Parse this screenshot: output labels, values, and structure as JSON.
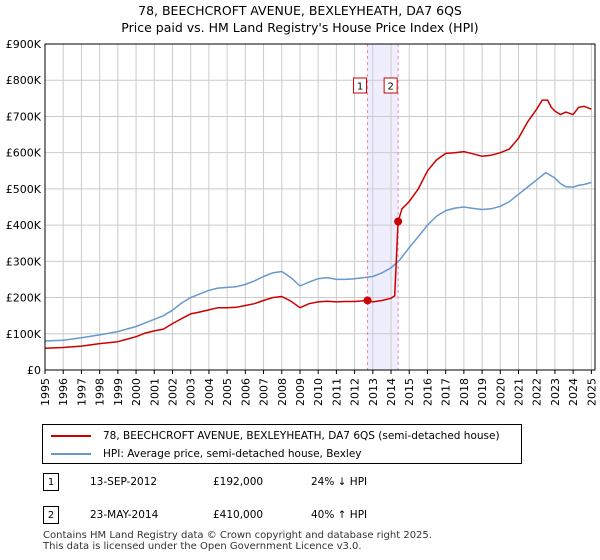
{
  "title_line1": "78, BEECHCROFT AVENUE, BEXLEYHEATH, DA7 6QS",
  "title_line2": "Price paid vs. HM Land Registry's House Price Index (HPI)",
  "colors": {
    "property": "#cc0000",
    "hpi": "#6699cc",
    "span_fill": "#eeeeff",
    "vline": "#ee88aa",
    "grid": "#cccccc"
  },
  "chart_data": {
    "type": "line",
    "title": "78, BEECHCROFT AVENUE, BEXLEYHEATH, DA7 6QS",
    "subtitle": "Price paid vs. HM Land Registry's House Price Index (HPI)",
    "xlabel": "",
    "ylabel": "",
    "xlim": [
      1995,
      2025.2
    ],
    "ylim": [
      0,
      900000
    ],
    "grid": true,
    "legend_position": "below",
    "y_ticks": [
      {
        "value": 0,
        "label": "£0"
      },
      {
        "value": 100000,
        "label": "£100K"
      },
      {
        "value": 200000,
        "label": "£200K"
      },
      {
        "value": 300000,
        "label": "£300K"
      },
      {
        "value": 400000,
        "label": "£400K"
      },
      {
        "value": 500000,
        "label": "£500K"
      },
      {
        "value": 600000,
        "label": "£600K"
      },
      {
        "value": 700000,
        "label": "£700K"
      },
      {
        "value": 800000,
        "label": "£800K"
      },
      {
        "value": 900000,
        "label": "£900K"
      }
    ],
    "x_ticks": [
      "1995",
      "1996",
      "1997",
      "1998",
      "1999",
      "2000",
      "2001",
      "2002",
      "2003",
      "2004",
      "2005",
      "2006",
      "2007",
      "2008",
      "2009",
      "2010",
      "2011",
      "2012",
      "2013",
      "2014",
      "2015",
      "2016",
      "2017",
      "2018",
      "2019",
      "2020",
      "2021",
      "2022",
      "2023",
      "2024",
      "2025"
    ],
    "series": [
      {
        "name": "78, BEECHCROFT AVENUE, BEXLEYHEATH, DA7 6QS (semi-detached house)",
        "color": "#cc0000",
        "x": [
          1995,
          1996,
          1997,
          1998,
          1999,
          2000,
          2000.5,
          2001,
          2001.5,
          2002,
          2002.5,
          2003,
          2003.5,
          2004,
          2004.5,
          2005,
          2005.5,
          2006,
          2006.5,
          2007,
          2007.5,
          2008,
          2008.5,
          2009,
          2009.5,
          2010,
          2010.5,
          2011,
          2011.5,
          2012,
          2012.71,
          2013,
          2013.5,
          2014,
          2014.2,
          2014.39,
          2014.6,
          2015,
          2015.5,
          2016,
          2016.5,
          2017,
          2017.5,
          2018,
          2018.5,
          2019,
          2019.5,
          2020,
          2020.5,
          2021,
          2021.5,
          2022,
          2022.3,
          2022.6,
          2022.8,
          2023,
          2023.3,
          2023.6,
          2024,
          2024.3,
          2024.6,
          2025
        ],
        "values": [
          60000,
          62000,
          66000,
          73000,
          78000,
          92000,
          102000,
          108000,
          113000,
          128000,
          142000,
          155000,
          160000,
          166000,
          172000,
          172000,
          173000,
          178000,
          183000,
          192000,
          200000,
          203000,
          190000,
          172000,
          183000,
          188000,
          190000,
          188000,
          189000,
          189000,
          192000,
          188000,
          192000,
          198000,
          205000,
          410000,
          445000,
          465000,
          500000,
          550000,
          580000,
          598000,
          600000,
          603000,
          597000,
          590000,
          593000,
          600000,
          610000,
          640000,
          685000,
          720000,
          745000,
          745000,
          725000,
          715000,
          705000,
          712000,
          705000,
          725000,
          728000,
          720000
        ]
      },
      {
        "name": "HPI: Average price, semi-detached house, Bexley",
        "color": "#6699cc",
        "x": [
          1995,
          1996,
          1997,
          1998,
          1999,
          2000,
          2000.5,
          2001,
          2001.5,
          2002,
          2002.5,
          2003,
          2003.5,
          2004,
          2004.5,
          2005,
          2005.5,
          2006,
          2006.5,
          2007,
          2007.5,
          2008,
          2008.5,
          2009,
          2009.5,
          2010,
          2010.5,
          2011,
          2011.5,
          2012,
          2012.5,
          2013,
          2013.5,
          2014,
          2014.5,
          2015,
          2015.5,
          2016,
          2016.5,
          2017,
          2017.5,
          2018,
          2018.5,
          2019,
          2019.5,
          2020,
          2020.5,
          2021,
          2021.5,
          2022,
          2022.5,
          2023,
          2023.3,
          2023.6,
          2024,
          2024.3,
          2024.6,
          2025
        ],
        "values": [
          80000,
          82000,
          89000,
          97000,
          106000,
          120000,
          130000,
          140000,
          150000,
          165000,
          185000,
          200000,
          210000,
          220000,
          226000,
          228000,
          230000,
          236000,
          246000,
          258000,
          268000,
          272000,
          255000,
          232000,
          243000,
          252000,
          255000,
          250000,
          250000,
          252000,
          255000,
          258000,
          268000,
          282000,
          305000,
          338000,
          368000,
          400000,
          425000,
          440000,
          447000,
          450000,
          446000,
          443000,
          445000,
          452000,
          465000,
          485000,
          505000,
          525000,
          545000,
          530000,
          515000,
          506000,
          505000,
          510000,
          512000,
          518000
        ]
      }
    ],
    "annotations": [
      {
        "label": "1",
        "x": 2012.71,
        "value": 192000
      },
      {
        "label": "2",
        "x": 2014.39,
        "value": 410000
      }
    ],
    "shaded_span": [
      2012.71,
      2014.39
    ]
  },
  "legend": {
    "property_label": "78, BEECHCROFT AVENUE, BEXLEYHEATH, DA7 6QS (semi-detached house)",
    "hpi_label": "HPI: Average price, semi-detached house, Bexley"
  },
  "transactions": [
    {
      "num": "1",
      "date": "13-SEP-2012",
      "price": "£192,000",
      "hpi": "24% ↓ HPI"
    },
    {
      "num": "2",
      "date": "23-MAY-2014",
      "price": "£410,000",
      "hpi": "40% ↑ HPI"
    }
  ],
  "footer": {
    "line1": "Contains HM Land Registry data © Crown copyright and database right 2025.",
    "line2": "This data is licensed under the Open Government Licence v3.0."
  }
}
